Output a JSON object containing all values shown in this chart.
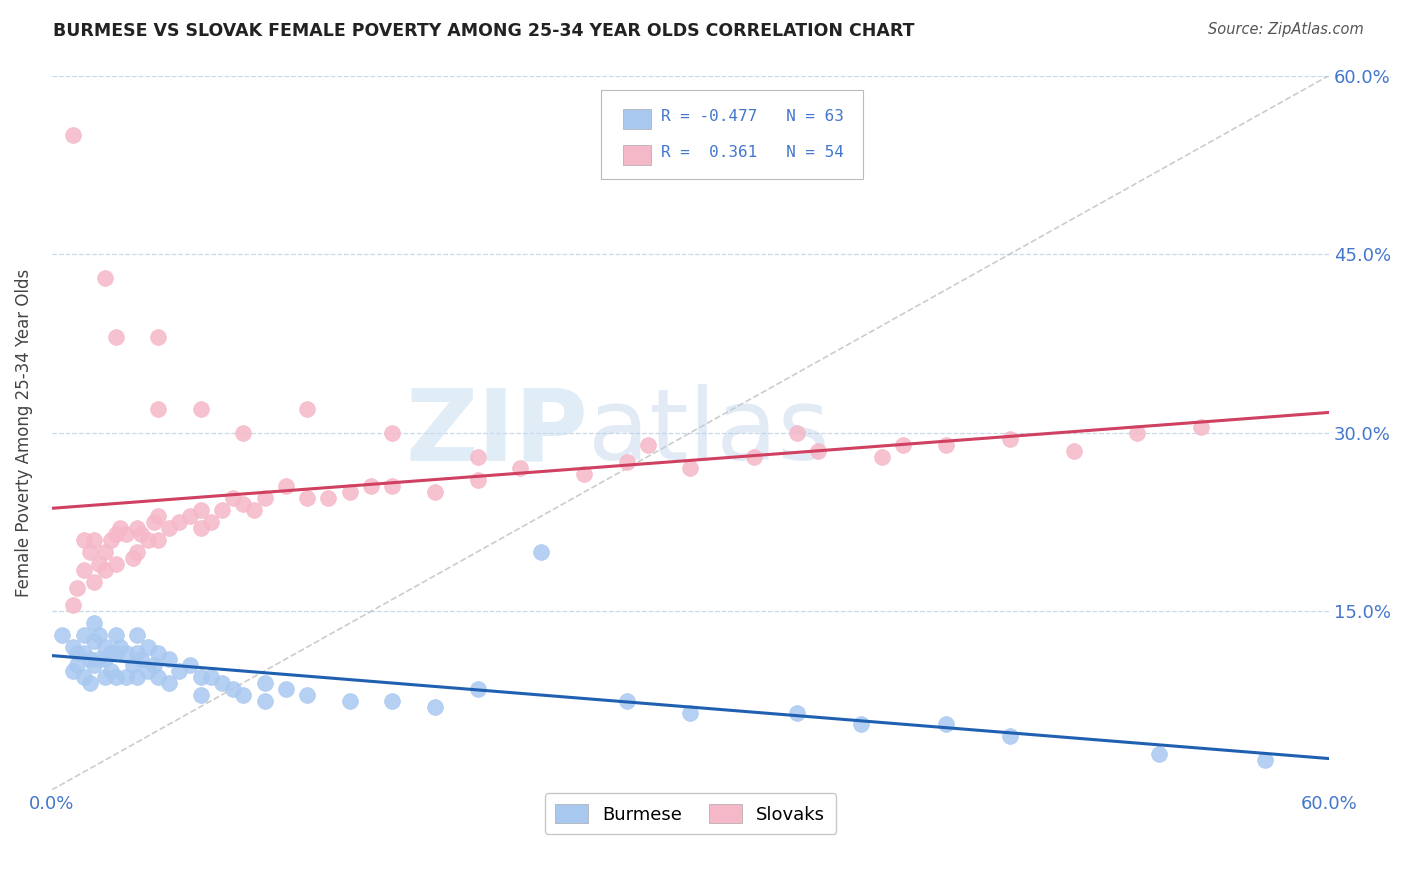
{
  "title": "BURMESE VS SLOVAK FEMALE POVERTY AMONG 25-34 YEAR OLDS CORRELATION CHART",
  "source": "Source: ZipAtlas.com",
  "ylabel": "Female Poverty Among 25-34 Year Olds",
  "xlim": [
    0.0,
    0.6
  ],
  "ylim": [
    0.0,
    0.6
  ],
  "x_tick_labels": [
    "0.0%",
    "60.0%"
  ],
  "x_ticks": [
    0.0,
    0.6
  ],
  "y_tick_labels": [
    "15.0%",
    "30.0%",
    "45.0%",
    "60.0%"
  ],
  "y_ticks": [
    0.15,
    0.3,
    0.45,
    0.6
  ],
  "burmese_color": "#a8c8f0",
  "slovak_color": "#f5b8c8",
  "burmese_line_color": "#2060b0",
  "slovak_line_color": "#d04060",
  "ref_line_color": "#c0c0c0",
  "bg_color": "#ffffff",
  "grid_color": "#c8d8e8",
  "tick_color": "#4477cc",
  "title_color": "#222222",
  "source_color": "#555555",
  "watermark_color": "#ccddef",
  "burmese_x": [
    0.005,
    0.01,
    0.01,
    0.012,
    0.012,
    0.015,
    0.015,
    0.015,
    0.018,
    0.018,
    0.02,
    0.02,
    0.02,
    0.022,
    0.022,
    0.025,
    0.025,
    0.025,
    0.028,
    0.028,
    0.03,
    0.03,
    0.03,
    0.032,
    0.035,
    0.035,
    0.038,
    0.04,
    0.04,
    0.04,
    0.042,
    0.045,
    0.045,
    0.048,
    0.05,
    0.05,
    0.055,
    0.055,
    0.06,
    0.065,
    0.07,
    0.07,
    0.075,
    0.08,
    0.085,
    0.09,
    0.1,
    0.1,
    0.11,
    0.12,
    0.14,
    0.16,
    0.18,
    0.2,
    0.23,
    0.27,
    0.3,
    0.35,
    0.38,
    0.42,
    0.45,
    0.52,
    0.57
  ],
  "burmese_y": [
    0.13,
    0.1,
    0.12,
    0.115,
    0.105,
    0.13,
    0.115,
    0.095,
    0.11,
    0.09,
    0.14,
    0.125,
    0.105,
    0.13,
    0.11,
    0.12,
    0.11,
    0.095,
    0.115,
    0.1,
    0.13,
    0.115,
    0.095,
    0.12,
    0.115,
    0.095,
    0.105,
    0.13,
    0.115,
    0.095,
    0.11,
    0.12,
    0.1,
    0.105,
    0.115,
    0.095,
    0.11,
    0.09,
    0.1,
    0.105,
    0.095,
    0.08,
    0.095,
    0.09,
    0.085,
    0.08,
    0.09,
    0.075,
    0.085,
    0.08,
    0.075,
    0.075,
    0.07,
    0.085,
    0.2,
    0.075,
    0.065,
    0.065,
    0.055,
    0.055,
    0.045,
    0.03,
    0.025
  ],
  "slovak_x": [
    0.01,
    0.012,
    0.015,
    0.015,
    0.018,
    0.02,
    0.02,
    0.022,
    0.025,
    0.025,
    0.028,
    0.03,
    0.03,
    0.032,
    0.035,
    0.038,
    0.04,
    0.04,
    0.042,
    0.045,
    0.048,
    0.05,
    0.05,
    0.055,
    0.06,
    0.065,
    0.07,
    0.07,
    0.075,
    0.08,
    0.085,
    0.09,
    0.095,
    0.1,
    0.11,
    0.12,
    0.13,
    0.14,
    0.15,
    0.16,
    0.18,
    0.2,
    0.22,
    0.25,
    0.27,
    0.3,
    0.33,
    0.36,
    0.39,
    0.42,
    0.45,
    0.48,
    0.51,
    0.54
  ],
  "slovak_y": [
    0.155,
    0.17,
    0.21,
    0.185,
    0.2,
    0.175,
    0.21,
    0.19,
    0.2,
    0.185,
    0.21,
    0.215,
    0.19,
    0.22,
    0.215,
    0.195,
    0.22,
    0.2,
    0.215,
    0.21,
    0.225,
    0.23,
    0.21,
    0.22,
    0.225,
    0.23,
    0.235,
    0.22,
    0.225,
    0.235,
    0.245,
    0.24,
    0.235,
    0.245,
    0.255,
    0.245,
    0.245,
    0.25,
    0.255,
    0.255,
    0.25,
    0.26,
    0.27,
    0.265,
    0.275,
    0.27,
    0.28,
    0.285,
    0.28,
    0.29,
    0.295,
    0.285,
    0.3,
    0.305
  ],
  "slovak_outliers_x": [
    0.01,
    0.025,
    0.03,
    0.05,
    0.05,
    0.07,
    0.09,
    0.12,
    0.16,
    0.2,
    0.28,
    0.35,
    0.4
  ],
  "slovak_outliers_y": [
    0.55,
    0.43,
    0.38,
    0.38,
    0.32,
    0.32,
    0.3,
    0.32,
    0.3,
    0.28,
    0.29,
    0.3,
    0.29
  ]
}
